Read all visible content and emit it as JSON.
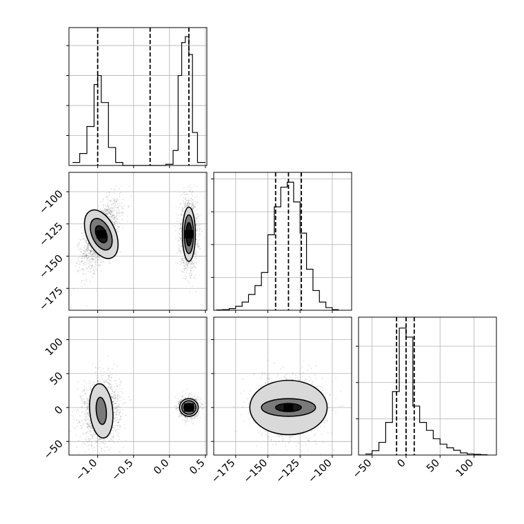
{
  "chart_data": {
    "type": "corner",
    "variables": [
      {
        "range": [
          -1.4,
          0.52
        ],
        "ticks": [
          -1.0,
          -0.5,
          0.0,
          0.5
        ],
        "tick_labels": [
          "−1.0",
          "−0.5",
          "0.0",
          "0.5"
        ]
      },
      {
        "range": [
          -192,
          -85
        ],
        "ticks": [
          -175,
          -150,
          -125,
          -100
        ],
        "tick_labels": [
          "−175",
          "−150",
          "−125",
          "−100"
        ]
      },
      {
        "range": [
          -70,
          133
        ],
        "ticks": [
          -50,
          0,
          50,
          100
        ],
        "tick_labels": [
          "−50",
          "0",
          "50",
          "100"
        ]
      }
    ],
    "grid": true,
    "histograms": [
      {
        "variable": 0,
        "bin_edges": [
          -1.35,
          -1.25,
          -1.15,
          -1.05,
          -1.0,
          -0.95,
          -0.85,
          -0.75,
          -0.65,
          -0.55,
          -0.45,
          -0.35,
          -0.25,
          -0.15,
          -0.05,
          0.05,
          0.12,
          0.17,
          0.22,
          0.27,
          0.32,
          0.39,
          0.5
        ],
        "counts": [
          0.05,
          0.2,
          0.65,
          1.35,
          1.5,
          1.05,
          0.3,
          0.05,
          0,
          0,
          0,
          0,
          0,
          0,
          0.02,
          0.25,
          1.5,
          2.05,
          2.15,
          1.85,
          0.55,
          0.05
        ],
        "quantiles": [
          -1.0,
          -0.27,
          0.27
        ],
        "ylim": [
          0,
          2.3
        ],
        "yticks": [
          0.5,
          1.0,
          1.5,
          2.0
        ]
      },
      {
        "variable": 1,
        "bin_edges": [
          -190,
          -185,
          -180,
          -175,
          -170,
          -165,
          -160,
          -155,
          -150,
          -145,
          -140,
          -135,
          -130,
          -125,
          -120,
          -115,
          -110,
          -105,
          -100,
          -95
        ],
        "counts": [
          0.01,
          0.02,
          0.05,
          0.12,
          0.25,
          0.48,
          0.75,
          1.15,
          2.3,
          3.15,
          3.75,
          3.9,
          3.3,
          2.35,
          1.25,
          0.6,
          0.25,
          0.08,
          0.02
        ],
        "quantiles": [
          -144,
          -134,
          -124
        ],
        "ylim": [
          0,
          4.2
        ],
        "yticks": [
          1,
          2,
          3,
          4
        ]
      },
      {
        "variable": 2,
        "bin_edges": [
          -60,
          -50,
          -40,
          -30,
          -20,
          -10,
          0,
          10,
          20,
          30,
          40,
          50,
          60,
          70,
          80,
          90,
          100,
          110,
          120
        ],
        "counts": [
          0.03,
          0.12,
          0.35,
          0.9,
          1.75,
          3.5,
          3.25,
          1.35,
          0.9,
          0.68,
          0.45,
          0.3,
          0.2,
          0.13,
          0.06,
          0.03,
          0.02,
          0.01
        ],
        "quantiles": [
          -14,
          0,
          12
        ],
        "ylim": [
          0,
          3.8
        ],
        "yticks": [
          1,
          2,
          3
        ]
      }
    ],
    "scatter_panels": [
      {
        "x_var": 0,
        "y_var": 1,
        "clusters": [
          {
            "center": [
              -0.95,
              -133
            ],
            "spread": [
              0.13,
              13
            ],
            "rho": 0.6
          },
          {
            "center": [
              0.27,
              -133
            ],
            "spread": [
              0.06,
              13
            ],
            "rho": 0.0
          }
        ],
        "contours": [
          {
            "center": [
              -0.95,
              -133
            ],
            "level": 1,
            "radius": [
              0.2,
              20
            ],
            "rho": 0.6
          },
          {
            "center": [
              -0.95,
              -133
            ],
            "level": 2,
            "radius": [
              0.13,
              13
            ],
            "rho": 0.6
          },
          {
            "center": [
              -0.95,
              -133
            ],
            "level": 3,
            "radius": [
              0.07,
              7
            ],
            "rho": 0.6
          },
          {
            "center": [
              0.27,
              -133
            ],
            "level": 1,
            "radius": [
              0.09,
              21
            ],
            "rho": 0.0
          },
          {
            "center": [
              0.27,
              -133
            ],
            "level": 2,
            "radius": [
              0.065,
              15
            ],
            "rho": 0.0
          },
          {
            "center": [
              0.27,
              -133
            ],
            "level": 3,
            "radius": [
              0.04,
              9
            ],
            "rho": 0.0
          }
        ]
      },
      {
        "x_var": 0,
        "y_var": 2,
        "clusters": [
          {
            "center": [
              -0.95,
              -5
            ],
            "spread": [
              0.13,
              24
            ],
            "rho": 0.1
          },
          {
            "center": [
              0.27,
              0
            ],
            "spread": [
              0.06,
              7
            ],
            "rho": 0.0
          }
        ],
        "contours": [
          {
            "center": [
              -0.95,
              -5
            ],
            "level": 1,
            "radius": [
              0.16,
              40
            ],
            "rho": 0.1
          },
          {
            "center": [
              -0.95,
              -5
            ],
            "level": 2,
            "radius": [
              0.07,
              20
            ],
            "rho": 0.1
          },
          {
            "center": [
              0.27,
              0
            ],
            "level": 1,
            "radius": [
              0.13,
              13
            ],
            "rho": 0.0
          },
          {
            "center": [
              0.27,
              0
            ],
            "level": 2,
            "radius": [
              0.1,
              10
            ],
            "rho": 0.0
          },
          {
            "center": [
              0.27,
              0
            ],
            "level": 3,
            "radius": [
              0.07,
              6
            ],
            "rho": 0.0
          }
        ]
      },
      {
        "x_var": 1,
        "y_var": 2,
        "clusters": [
          {
            "center": [
              -134,
              0
            ],
            "spread": [
              13,
              22
            ],
            "rho": 0.0
          }
        ],
        "contours": [
          {
            "center": [
              -134,
              0
            ],
            "level": 1,
            "radius": [
              30,
              40
            ],
            "rho": 0.0
          },
          {
            "center": [
              -134,
              0
            ],
            "level": 2,
            "radius": [
              21,
              13
            ],
            "rho": 0.0
          },
          {
            "center": [
              -134,
              0
            ],
            "level": 3,
            "radius": [
              10,
              6
            ],
            "rho": 0.0
          }
        ]
      }
    ]
  }
}
